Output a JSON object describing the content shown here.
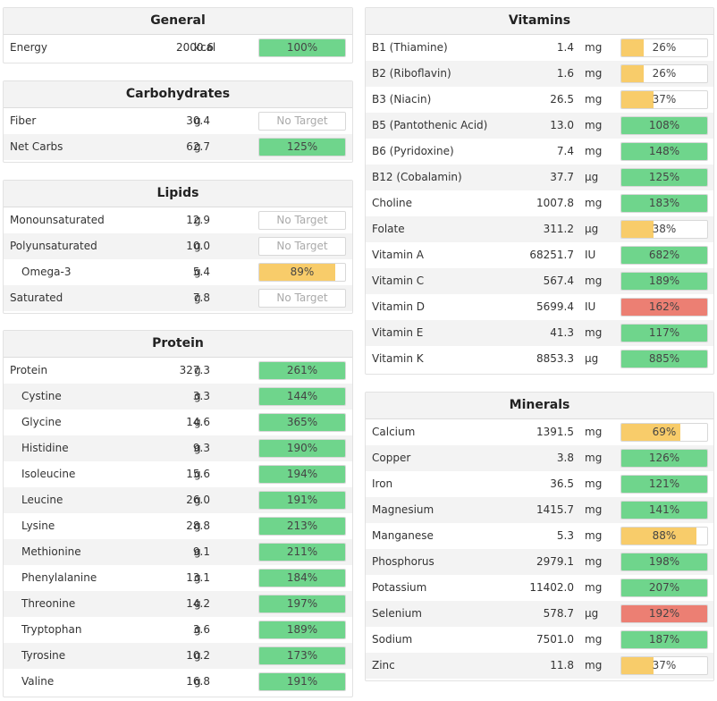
{
  "colors": {
    "green": "#6fd58c",
    "yellow": "#f8cc6a",
    "red": "#ec7f73"
  },
  "general": {
    "title": "General",
    "rows": [
      {
        "name": "Energy",
        "amount": "2000.6",
        "unit": "kcal",
        "pct": "100%",
        "fill": 1.0,
        "status": "green"
      }
    ]
  },
  "carbohydrates": {
    "title": "Carbohydrates",
    "rows": [
      {
        "name": "Fiber",
        "amount": "30.4",
        "unit": "g",
        "pct": "No Target",
        "fill": 0,
        "status": "none"
      },
      {
        "name": "Net Carbs",
        "amount": "62.7",
        "unit": "g",
        "pct": "125%",
        "fill": 1.0,
        "status": "green"
      }
    ]
  },
  "lipids": {
    "title": "Lipids",
    "rows": [
      {
        "name": "Monounsaturated",
        "amount": "12.9",
        "unit": "g",
        "pct": "No Target",
        "fill": 0,
        "status": "none"
      },
      {
        "name": "Polyunsaturated",
        "amount": "10.0",
        "unit": "g",
        "pct": "No Target",
        "fill": 0,
        "status": "none"
      },
      {
        "name": "Omega-3",
        "amount": "5.4",
        "unit": "g",
        "pct": "89%",
        "fill": 0.89,
        "status": "yellow",
        "sub": true
      },
      {
        "name": "Saturated",
        "amount": "7.8",
        "unit": "g",
        "pct": "No Target",
        "fill": 0,
        "status": "none"
      }
    ]
  },
  "protein": {
    "title": "Protein",
    "rows": [
      {
        "name": "Protein",
        "amount": "327.3",
        "unit": "g",
        "pct": "261%",
        "fill": 1.0,
        "status": "green"
      },
      {
        "name": "Cystine",
        "amount": "3.3",
        "unit": "g",
        "pct": "144%",
        "fill": 1.0,
        "status": "green",
        "sub": true
      },
      {
        "name": "Glycine",
        "amount": "14.6",
        "unit": "g",
        "pct": "365%",
        "fill": 1.0,
        "status": "green",
        "sub": true
      },
      {
        "name": "Histidine",
        "amount": "9.3",
        "unit": "g",
        "pct": "190%",
        "fill": 1.0,
        "status": "green",
        "sub": true
      },
      {
        "name": "Isoleucine",
        "amount": "15.6",
        "unit": "g",
        "pct": "194%",
        "fill": 1.0,
        "status": "green",
        "sub": true
      },
      {
        "name": "Leucine",
        "amount": "26.0",
        "unit": "g",
        "pct": "191%",
        "fill": 1.0,
        "status": "green",
        "sub": true
      },
      {
        "name": "Lysine",
        "amount": "28.8",
        "unit": "g",
        "pct": "213%",
        "fill": 1.0,
        "status": "green",
        "sub": true
      },
      {
        "name": "Methionine",
        "amount": "9.1",
        "unit": "g",
        "pct": "211%",
        "fill": 1.0,
        "status": "green",
        "sub": true
      },
      {
        "name": "Phenylalanine",
        "amount": "13.1",
        "unit": "g",
        "pct": "184%",
        "fill": 1.0,
        "status": "green",
        "sub": true
      },
      {
        "name": "Threonine",
        "amount": "14.2",
        "unit": "g",
        "pct": "197%",
        "fill": 1.0,
        "status": "green",
        "sub": true
      },
      {
        "name": "Tryptophan",
        "amount": "3.6",
        "unit": "g",
        "pct": "189%",
        "fill": 1.0,
        "status": "green",
        "sub": true
      },
      {
        "name": "Tyrosine",
        "amount": "10.2",
        "unit": "g",
        "pct": "173%",
        "fill": 1.0,
        "status": "green",
        "sub": true
      },
      {
        "name": "Valine",
        "amount": "16.8",
        "unit": "g",
        "pct": "191%",
        "fill": 1.0,
        "status": "green",
        "sub": true
      }
    ]
  },
  "vitamins": {
    "title": "Vitamins",
    "rows": [
      {
        "name": "B1 (Thiamine)",
        "amount": "1.4",
        "unit": "mg",
        "pct": "26%",
        "fill": 0.26,
        "status": "yellow"
      },
      {
        "name": "B2 (Riboflavin)",
        "amount": "1.6",
        "unit": "mg",
        "pct": "26%",
        "fill": 0.26,
        "status": "yellow"
      },
      {
        "name": "B3 (Niacin)",
        "amount": "26.5",
        "unit": "mg",
        "pct": "37%",
        "fill": 0.37,
        "status": "yellow"
      },
      {
        "name": "B5 (Pantothenic Acid)",
        "amount": "13.0",
        "unit": "mg",
        "pct": "108%",
        "fill": 1.0,
        "status": "green"
      },
      {
        "name": "B6 (Pyridoxine)",
        "amount": "7.4",
        "unit": "mg",
        "pct": "148%",
        "fill": 1.0,
        "status": "green"
      },
      {
        "name": "B12 (Cobalamin)",
        "amount": "37.7",
        "unit": "µg",
        "pct": "125%",
        "fill": 1.0,
        "status": "green"
      },
      {
        "name": "Choline",
        "amount": "1007.8",
        "unit": "mg",
        "pct": "183%",
        "fill": 1.0,
        "status": "green"
      },
      {
        "name": "Folate",
        "amount": "311.2",
        "unit": "µg",
        "pct": "38%",
        "fill": 0.38,
        "status": "yellow"
      },
      {
        "name": "Vitamin A",
        "amount": "68251.7",
        "unit": "IU",
        "pct": "682%",
        "fill": 1.0,
        "status": "green"
      },
      {
        "name": "Vitamin C",
        "amount": "567.4",
        "unit": "mg",
        "pct": "189%",
        "fill": 1.0,
        "status": "green"
      },
      {
        "name": "Vitamin D",
        "amount": "5699.4",
        "unit": "IU",
        "pct": "162%",
        "fill": 1.0,
        "status": "red"
      },
      {
        "name": "Vitamin E",
        "amount": "41.3",
        "unit": "mg",
        "pct": "117%",
        "fill": 1.0,
        "status": "green"
      },
      {
        "name": "Vitamin K",
        "amount": "8853.3",
        "unit": "µg",
        "pct": "885%",
        "fill": 1.0,
        "status": "green"
      }
    ]
  },
  "minerals": {
    "title": "Minerals",
    "rows": [
      {
        "name": "Calcium",
        "amount": "1391.5",
        "unit": "mg",
        "pct": "69%",
        "fill": 0.69,
        "status": "yellow"
      },
      {
        "name": "Copper",
        "amount": "3.8",
        "unit": "mg",
        "pct": "126%",
        "fill": 1.0,
        "status": "green"
      },
      {
        "name": "Iron",
        "amount": "36.5",
        "unit": "mg",
        "pct": "121%",
        "fill": 1.0,
        "status": "green"
      },
      {
        "name": "Magnesium",
        "amount": "1415.7",
        "unit": "mg",
        "pct": "141%",
        "fill": 1.0,
        "status": "green"
      },
      {
        "name": "Manganese",
        "amount": "5.3",
        "unit": "mg",
        "pct": "88%",
        "fill": 0.88,
        "status": "yellow"
      },
      {
        "name": "Phosphorus",
        "amount": "2979.1",
        "unit": "mg",
        "pct": "198%",
        "fill": 1.0,
        "status": "green"
      },
      {
        "name": "Potassium",
        "amount": "11402.0",
        "unit": "mg",
        "pct": "207%",
        "fill": 1.0,
        "status": "green"
      },
      {
        "name": "Selenium",
        "amount": "578.7",
        "unit": "µg",
        "pct": "192%",
        "fill": 1.0,
        "status": "red"
      },
      {
        "name": "Sodium",
        "amount": "7501.0",
        "unit": "mg",
        "pct": "187%",
        "fill": 1.0,
        "status": "green"
      },
      {
        "name": "Zinc",
        "amount": "11.8",
        "unit": "mg",
        "pct": "37%",
        "fill": 0.37,
        "status": "yellow"
      }
    ]
  }
}
